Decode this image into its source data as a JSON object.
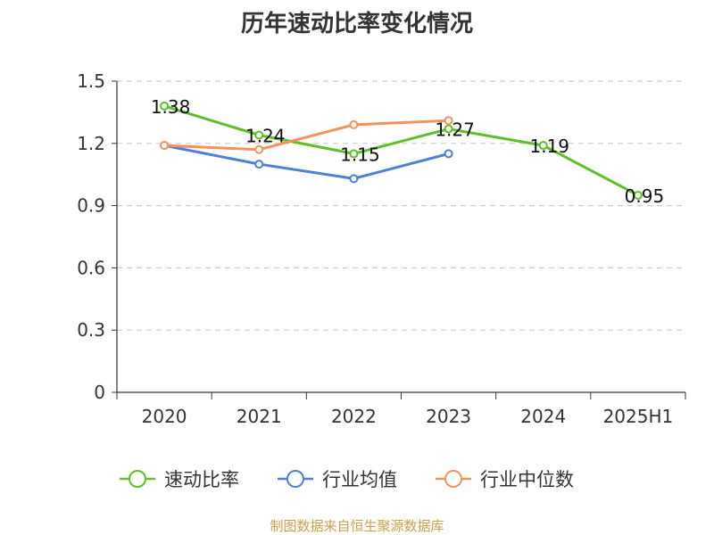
{
  "chart_data": {
    "type": "line",
    "title": "历年速动比率变化情况",
    "categories": [
      "2020",
      "2021",
      "2022",
      "2023",
      "2024",
      "2025H1"
    ],
    "series": [
      {
        "name": "速动比率",
        "color": "#5fbf26",
        "values": [
          1.38,
          1.24,
          1.15,
          1.27,
          1.19,
          0.95
        ],
        "labels": [
          "1.38",
          "1.24",
          "1.15",
          "1.27",
          "1.19",
          "0.95"
        ],
        "show_labels": true
      },
      {
        "name": "行业均值",
        "color": "#4e7fd6",
        "values": [
          1.19,
          1.1,
          1.03,
          1.15,
          null,
          null
        ],
        "show_labels": false
      },
      {
        "name": "行业中位数",
        "color": "#f5925c",
        "values": [
          1.19,
          1.17,
          1.29,
          1.31,
          null,
          null
        ],
        "show_labels": false
      }
    ],
    "ylim": [
      0,
      1.5
    ],
    "yticks": [
      "0",
      "0.3",
      "0.6",
      "0.9",
      "1.2",
      "1.5"
    ],
    "ytick_values": [
      0,
      0.3,
      0.6,
      0.9,
      1.2,
      1.5
    ],
    "grid": true,
    "legend_position": "bottom"
  },
  "source_note": "制图数据来自恒生聚源数据库"
}
